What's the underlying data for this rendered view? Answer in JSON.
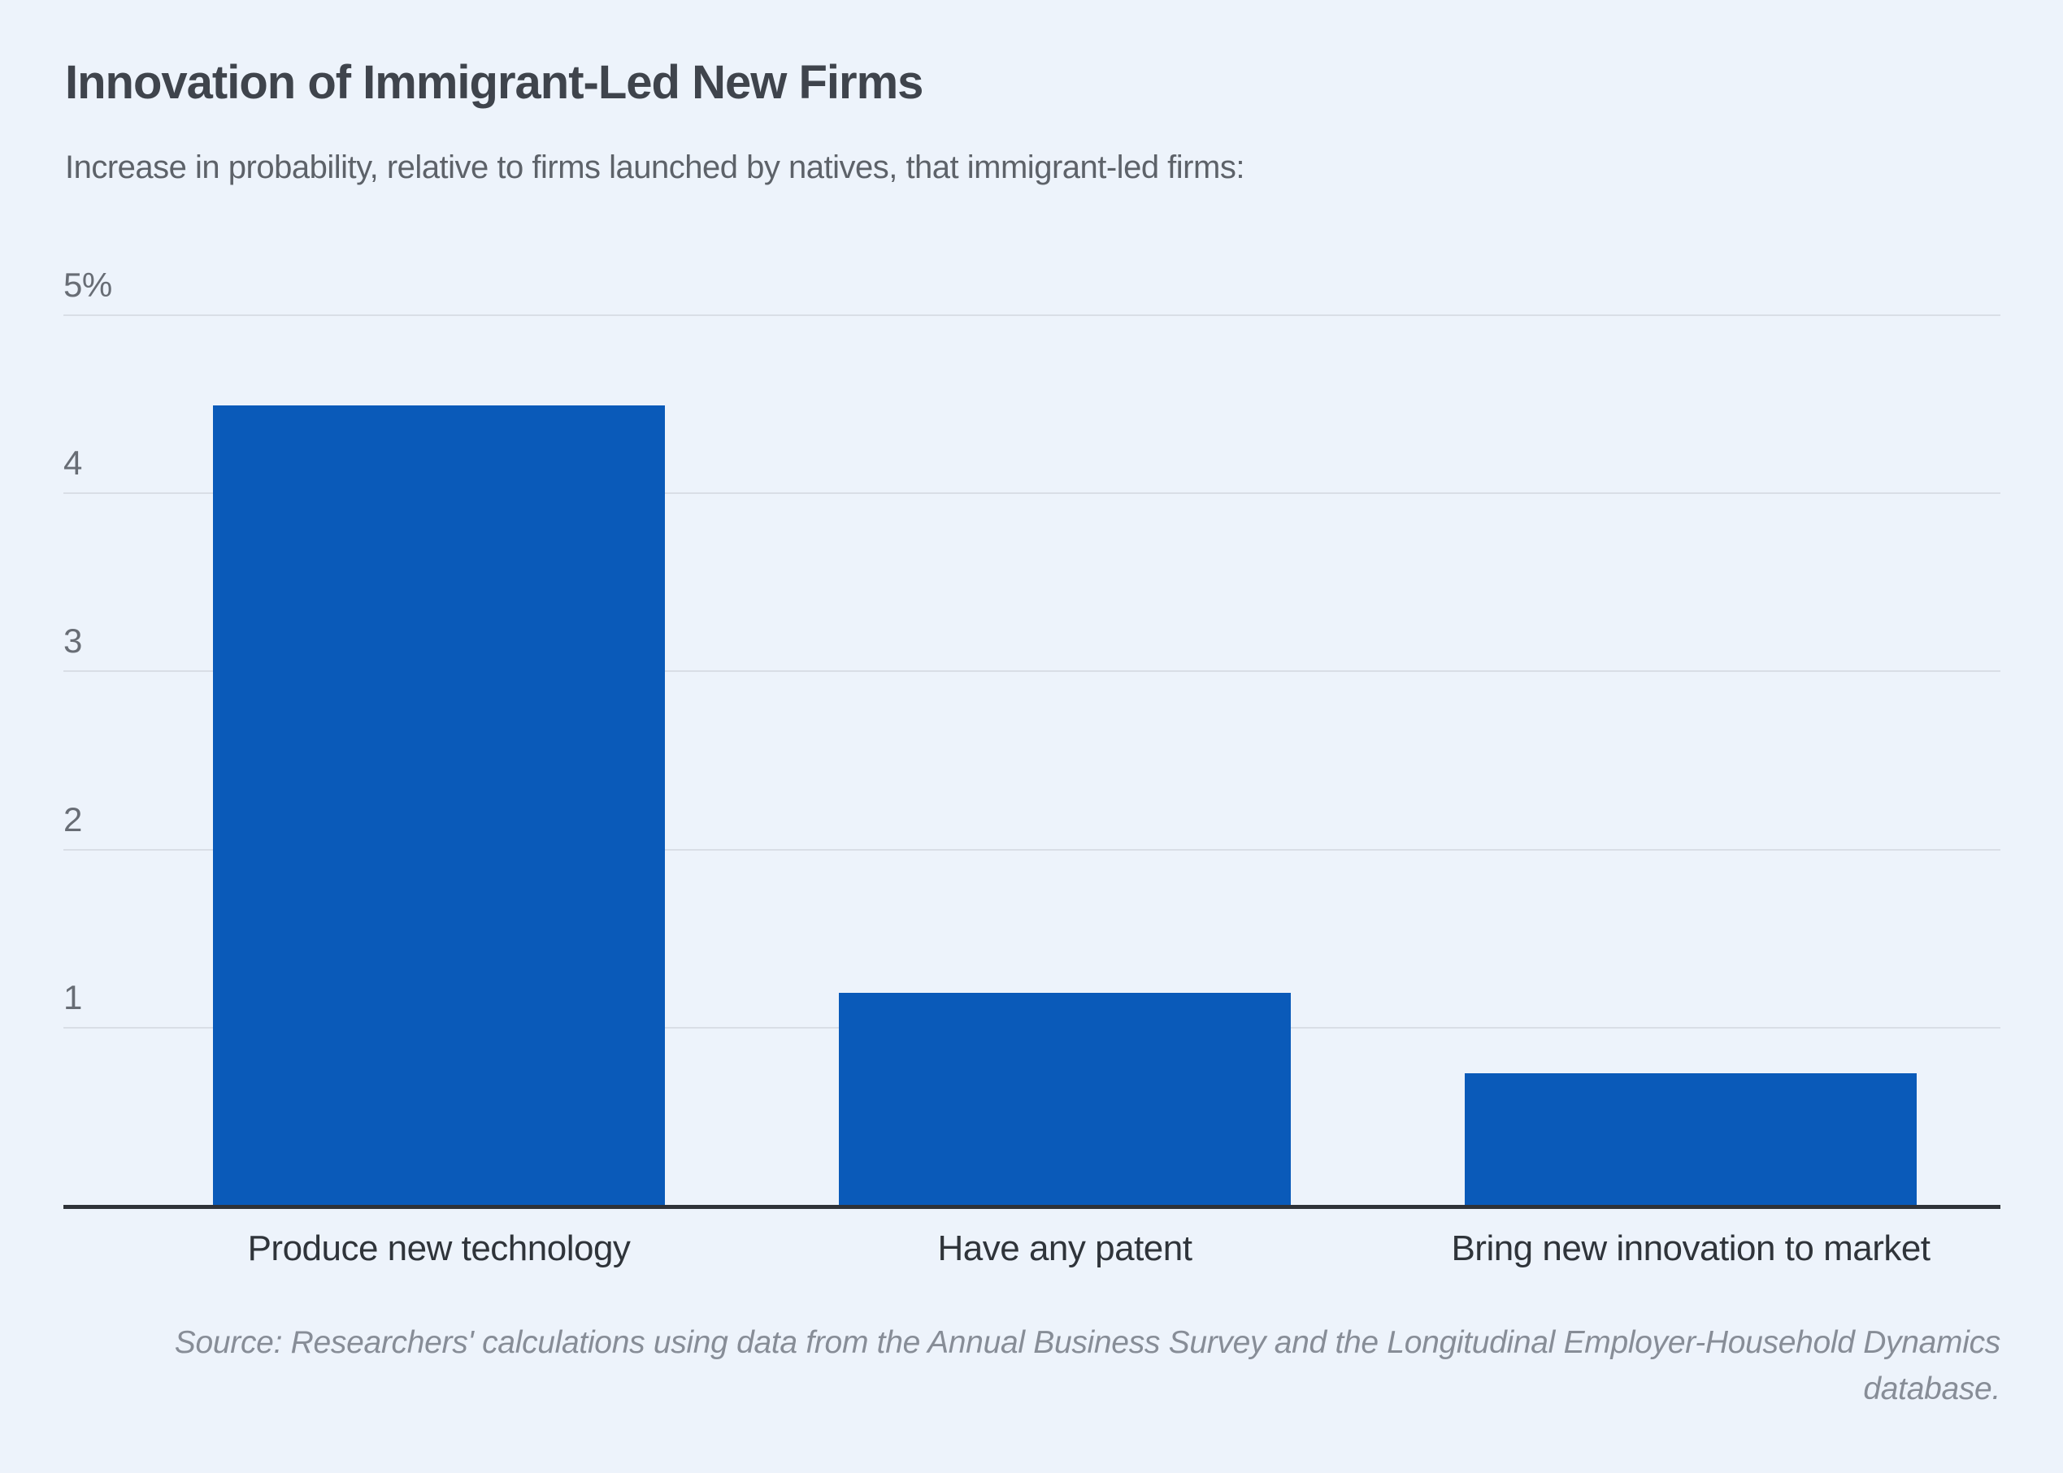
{
  "chart_data": {
    "type": "bar",
    "title": "Innovation of Immigrant-Led New Firms",
    "subtitle": "Increase in probability, relative to firms launched by natives, that immigrant-led firms:",
    "categories": [
      "Produce new technology",
      "Have any patent",
      "Bring new innovation to market"
    ],
    "values": [
      4.5,
      1.2,
      0.75
    ],
    "ylim": [
      0,
      5
    ],
    "yticks": [
      {
        "value": 1,
        "label": "1"
      },
      {
        "value": 2,
        "label": "2"
      },
      {
        "value": 3,
        "label": "3"
      },
      {
        "value": 4,
        "label": "4"
      },
      {
        "value": 5,
        "label": "5%"
      }
    ],
    "grid": true,
    "legend": false,
    "bar_color": "#0a5ab9",
    "background_color": "#edf3fb",
    "source": "Source: Researchers' calculations using data from the Annual Business Survey and the Longitudinal Employer-Household Dynamics database."
  }
}
